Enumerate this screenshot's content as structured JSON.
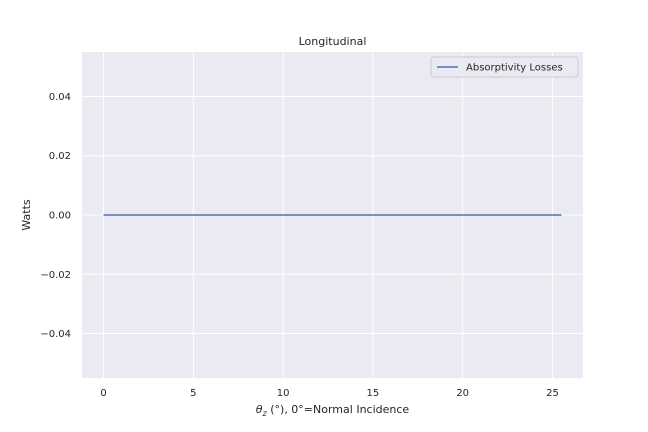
{
  "chart_data": {
    "type": "line",
    "title": "Longitudinal",
    "xlabel_symbol": "θ",
    "xlabel_subscript": "z",
    "xlabel_rest": " (°), 0°=Normal Incidence",
    "ylabel": "Watts",
    "xlim": [
      -1.2,
      26.7
    ],
    "ylim": [
      -0.055,
      0.055
    ],
    "xticks": [
      0,
      5,
      10,
      15,
      20,
      25
    ],
    "xtick_labels": [
      "0",
      "5",
      "10",
      "15",
      "20",
      "25"
    ],
    "yticks": [
      0.04,
      0.02,
      0.0,
      -0.02,
      -0.04
    ],
    "ytick_labels": [
      "0.04",
      "0.02",
      "0.00",
      "−0.02",
      "−0.04"
    ],
    "grid": true,
    "legend_position": "top-right",
    "series": [
      {
        "name": "Absorptivity Losses",
        "color": "#4c72b0",
        "x": [
          0,
          25.5
        ],
        "y": [
          0,
          0
        ]
      }
    ]
  },
  "colors": {
    "plot_background": "#eaeaf2",
    "grid": "#ffffff",
    "text": "#262626"
  }
}
